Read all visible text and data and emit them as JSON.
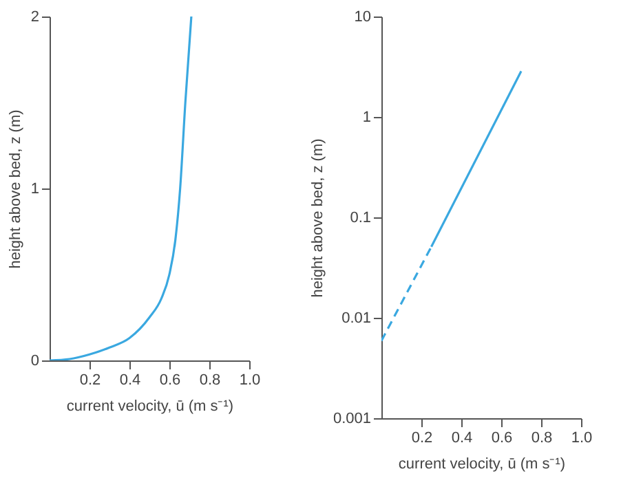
{
  "chart_data": [
    {
      "type": "line",
      "xlabel": "current velocity, ū (m s⁻¹)",
      "ylabel": "height above bed, z (m)",
      "xlim": [
        0,
        1
      ],
      "xticks": [
        0.2,
        0.4,
        0.6,
        0.8,
        {
          "value": 1,
          "label": "1.0"
        }
      ],
      "ylim": [
        0,
        2
      ],
      "yticks": [
        0,
        1,
        2
      ],
      "grid": false,
      "series": [
        {
          "color": "#3aa8e0",
          "line_style": "solid",
          "x": [
            0,
            0.1,
            0.2,
            0.3,
            0.4,
            0.5,
            0.56,
            0.6,
            0.63,
            0.654,
            0.68,
            0.71
          ],
          "values": [
            0,
            0.008,
            0.035,
            0.075,
            0.13,
            0.25,
            0.36,
            0.5,
            0.7,
            1.0,
            1.5,
            2.0
          ]
        }
      ]
    },
    {
      "type": "line",
      "xlabel": "current velocity, ū (m s⁻¹)",
      "ylabel": "height above bed, z (m)",
      "xlim": [
        0,
        1
      ],
      "xticks": [
        0.2,
        0.4,
        0.6,
        0.8,
        {
          "value": 1,
          "label": "1.0"
        }
      ],
      "ylim": [
        0.001,
        10
      ],
      "yticks": [
        0.001,
        0.01,
        0.1,
        1,
        10
      ],
      "log": "y",
      "grid": false,
      "series": [
        {
          "color": "#3aa8e0",
          "line_style": "dashed",
          "x": [
            0,
            0.25
          ],
          "values": [
            0.0059,
            0.051
          ]
        },
        {
          "color": "#3aa8e0",
          "line_style": "solid",
          "x": [
            0.25,
            0.7
          ],
          "values": [
            0.051,
            2.85
          ]
        }
      ]
    }
  ]
}
